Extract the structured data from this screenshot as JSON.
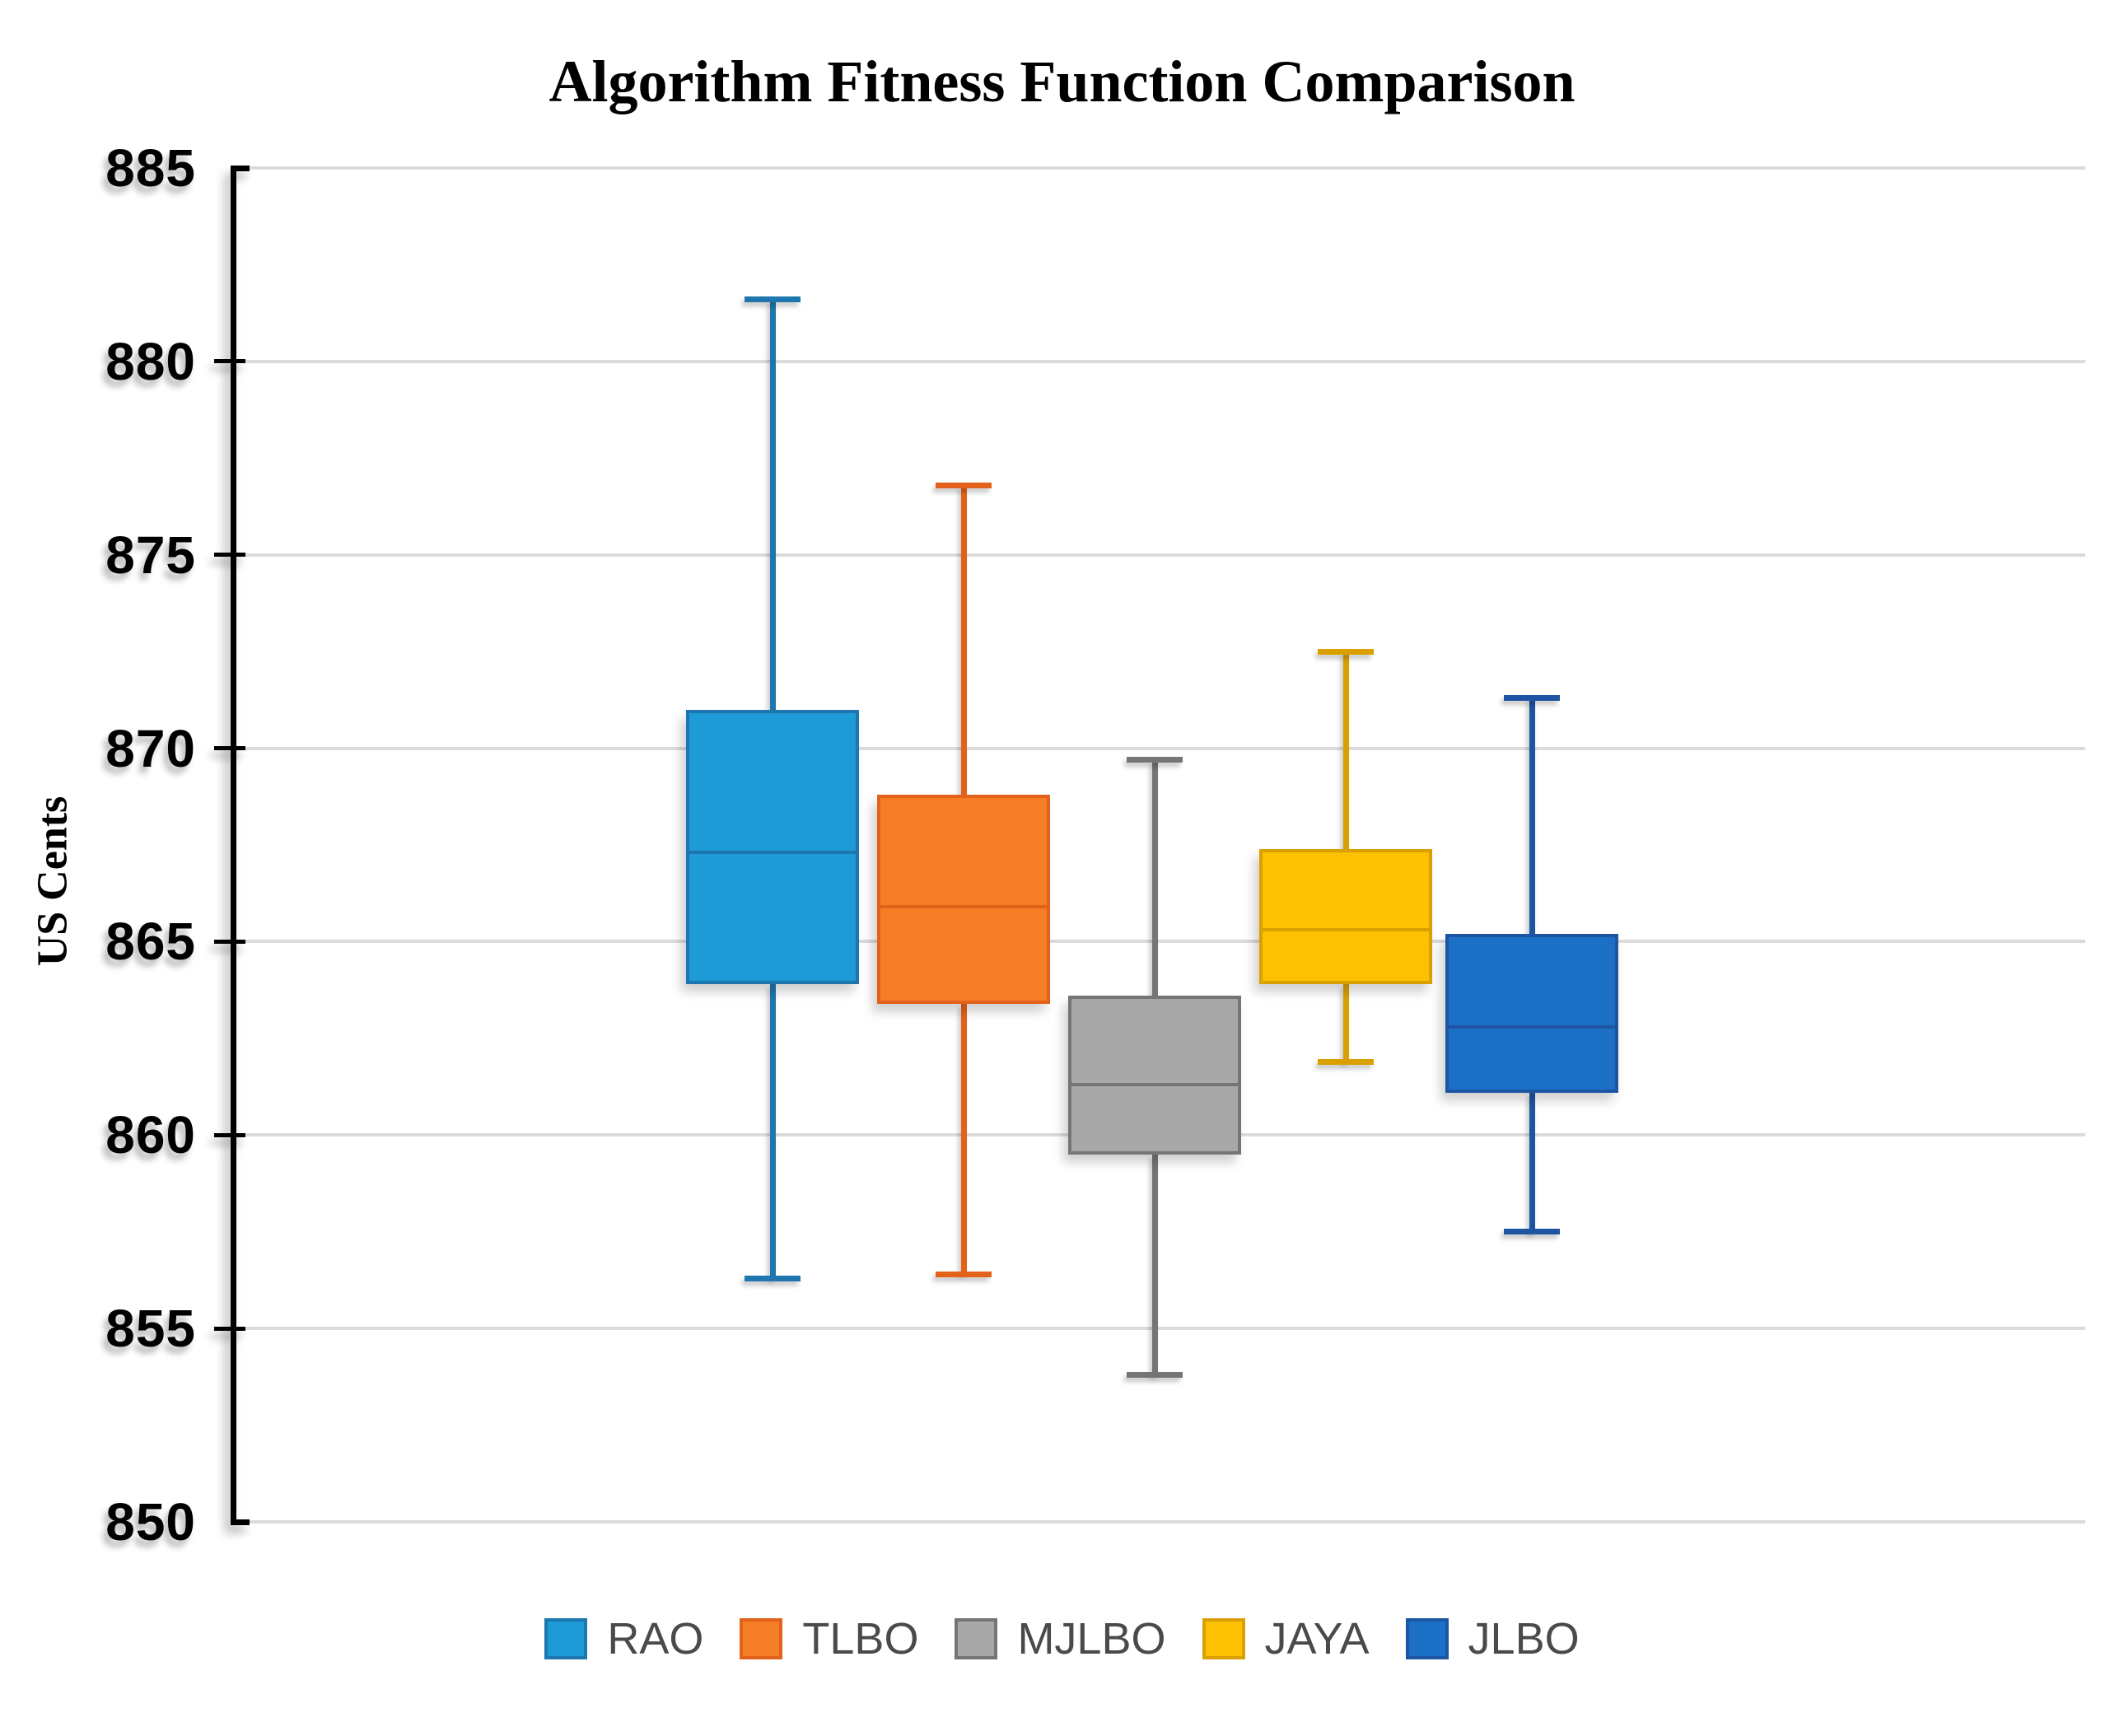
{
  "chart_data": {
    "type": "boxplot",
    "title": "Algorithm Fitness Function Comparison",
    "ylabel": "US Cents",
    "xlabel": "",
    "ylim": [
      850,
      885
    ],
    "yticks": [
      885,
      880,
      875,
      870,
      865,
      860,
      855,
      850
    ],
    "grid": true,
    "legend_position": "bottom",
    "categories": [
      "RAO",
      "TLBO",
      "MJLBO",
      "JAYA",
      "JLBO"
    ],
    "series": [
      {
        "name": "RAO",
        "fill": "#1E9AD6",
        "stroke": "#1E76AE",
        "whisker_low": 856.3,
        "q1": 863.9,
        "median": 867.3,
        "q3": 871.0,
        "whisker_high": 881.6
      },
      {
        "name": "TLBO",
        "fill": "#F57E27",
        "stroke": "#E2621C",
        "whisker_low": 856.4,
        "q1": 863.4,
        "median": 865.9,
        "q3": 868.8,
        "whisker_high": 876.8
      },
      {
        "name": "MJLBO",
        "fill": "#A8A8A8",
        "stroke": "#757575",
        "whisker_low": 853.8,
        "q1": 859.5,
        "median": 861.3,
        "q3": 863.6,
        "whisker_high": 869.7
      },
      {
        "name": "JAYA",
        "fill": "#FDC101",
        "stroke": "#D9A000",
        "whisker_low": 861.9,
        "q1": 863.9,
        "median": 865.3,
        "q3": 867.4,
        "whisker_high": 872.5
      },
      {
        "name": "JLBO",
        "fill": "#1B70C5",
        "stroke": "#1E55A3",
        "whisker_low": 857.5,
        "q1": 861.1,
        "median": 862.8,
        "q3": 865.2,
        "whisker_high": 871.3
      }
    ]
  },
  "colors": {
    "background": "#FFFFFF",
    "gridline": "#DBDBDB",
    "axis": "#000000",
    "tick_label": "#000000",
    "legend_text": "#4A4A4A"
  }
}
